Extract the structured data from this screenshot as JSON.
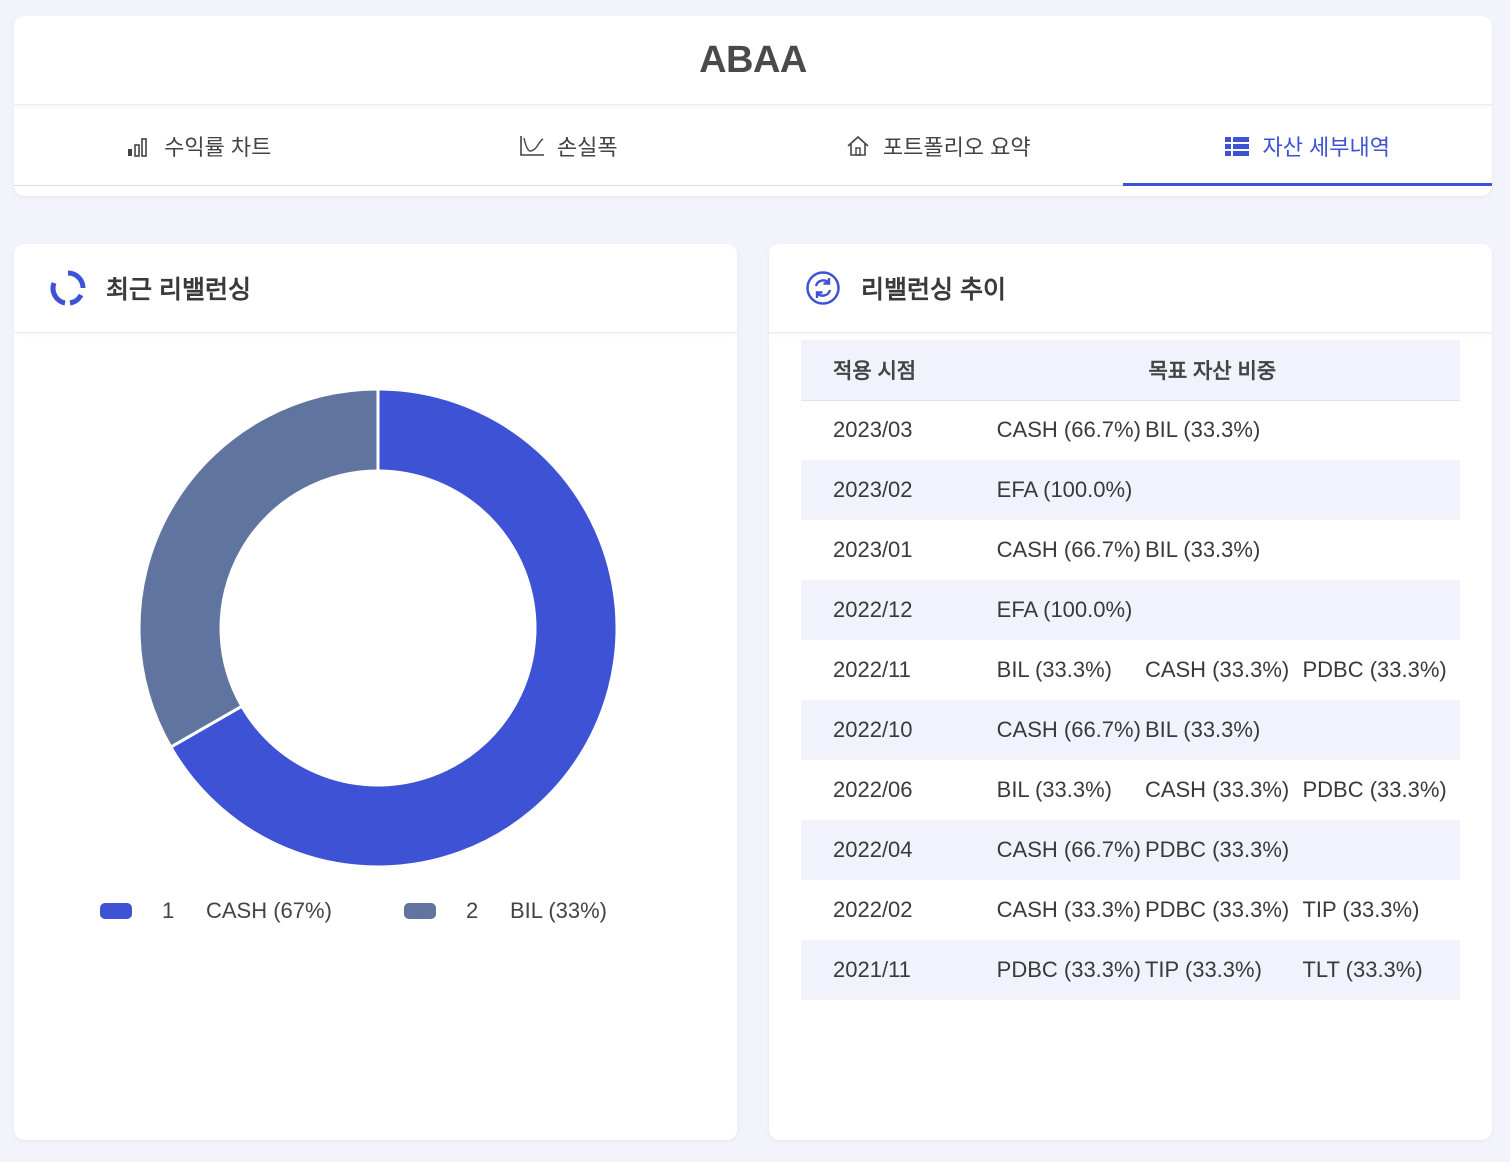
{
  "header": {
    "title": "ABAA"
  },
  "tabs": [
    {
      "label": "수익률 차트",
      "icon": "bar-chart-icon"
    },
    {
      "label": "손실폭",
      "icon": "drawdown-chart-icon"
    },
    {
      "label": "포트폴리오 요약",
      "icon": "home-icon"
    },
    {
      "label": "자산 세부내역",
      "icon": "list-icon",
      "active": true
    }
  ],
  "recent": {
    "title": "최근 리밸런싱",
    "chart_data": {
      "type": "pie",
      "categories": [
        "CASH",
        "BIL"
      ],
      "values": [
        66.7,
        33.3
      ],
      "colors": [
        "#3d52d5",
        "#6074a0"
      ]
    },
    "legend": [
      {
        "num": "1",
        "label": "CASH (67%)"
      },
      {
        "num": "2",
        "label": "BIL (33%)"
      }
    ]
  },
  "history": {
    "title": "리밸런싱 추이",
    "columns": [
      "적용 시점",
      "목표 자산 비중"
    ],
    "rows": [
      {
        "date": "2023/03",
        "weights": [
          "CASH (66.7%)",
          "BIL (33.3%)",
          ""
        ]
      },
      {
        "date": "2023/02",
        "weights": [
          "EFA (100.0%)",
          "",
          ""
        ]
      },
      {
        "date": "2023/01",
        "weights": [
          "CASH (66.7%)",
          "BIL (33.3%)",
          ""
        ]
      },
      {
        "date": "2022/12",
        "weights": [
          "EFA (100.0%)",
          "",
          ""
        ]
      },
      {
        "date": "2022/11",
        "weights": [
          "BIL (33.3%)",
          "CASH (33.3%)",
          "PDBC (33.3%)"
        ]
      },
      {
        "date": "2022/10",
        "weights": [
          "CASH (66.7%)",
          "BIL (33.3%)",
          ""
        ]
      },
      {
        "date": "2022/06",
        "weights": [
          "BIL (33.3%)",
          "CASH (33.3%)",
          "PDBC (33.3%)"
        ]
      },
      {
        "date": "2022/04",
        "weights": [
          "CASH (66.7%)",
          "PDBC (33.3%)",
          ""
        ]
      },
      {
        "date": "2022/02",
        "weights": [
          "CASH (33.3%)",
          "PDBC (33.3%)",
          "TIP (33.3%)"
        ]
      },
      {
        "date": "2021/11",
        "weights": [
          "PDBC (33.3%)",
          "TIP (33.3%)",
          "TLT (33.3%)"
        ]
      }
    ]
  }
}
